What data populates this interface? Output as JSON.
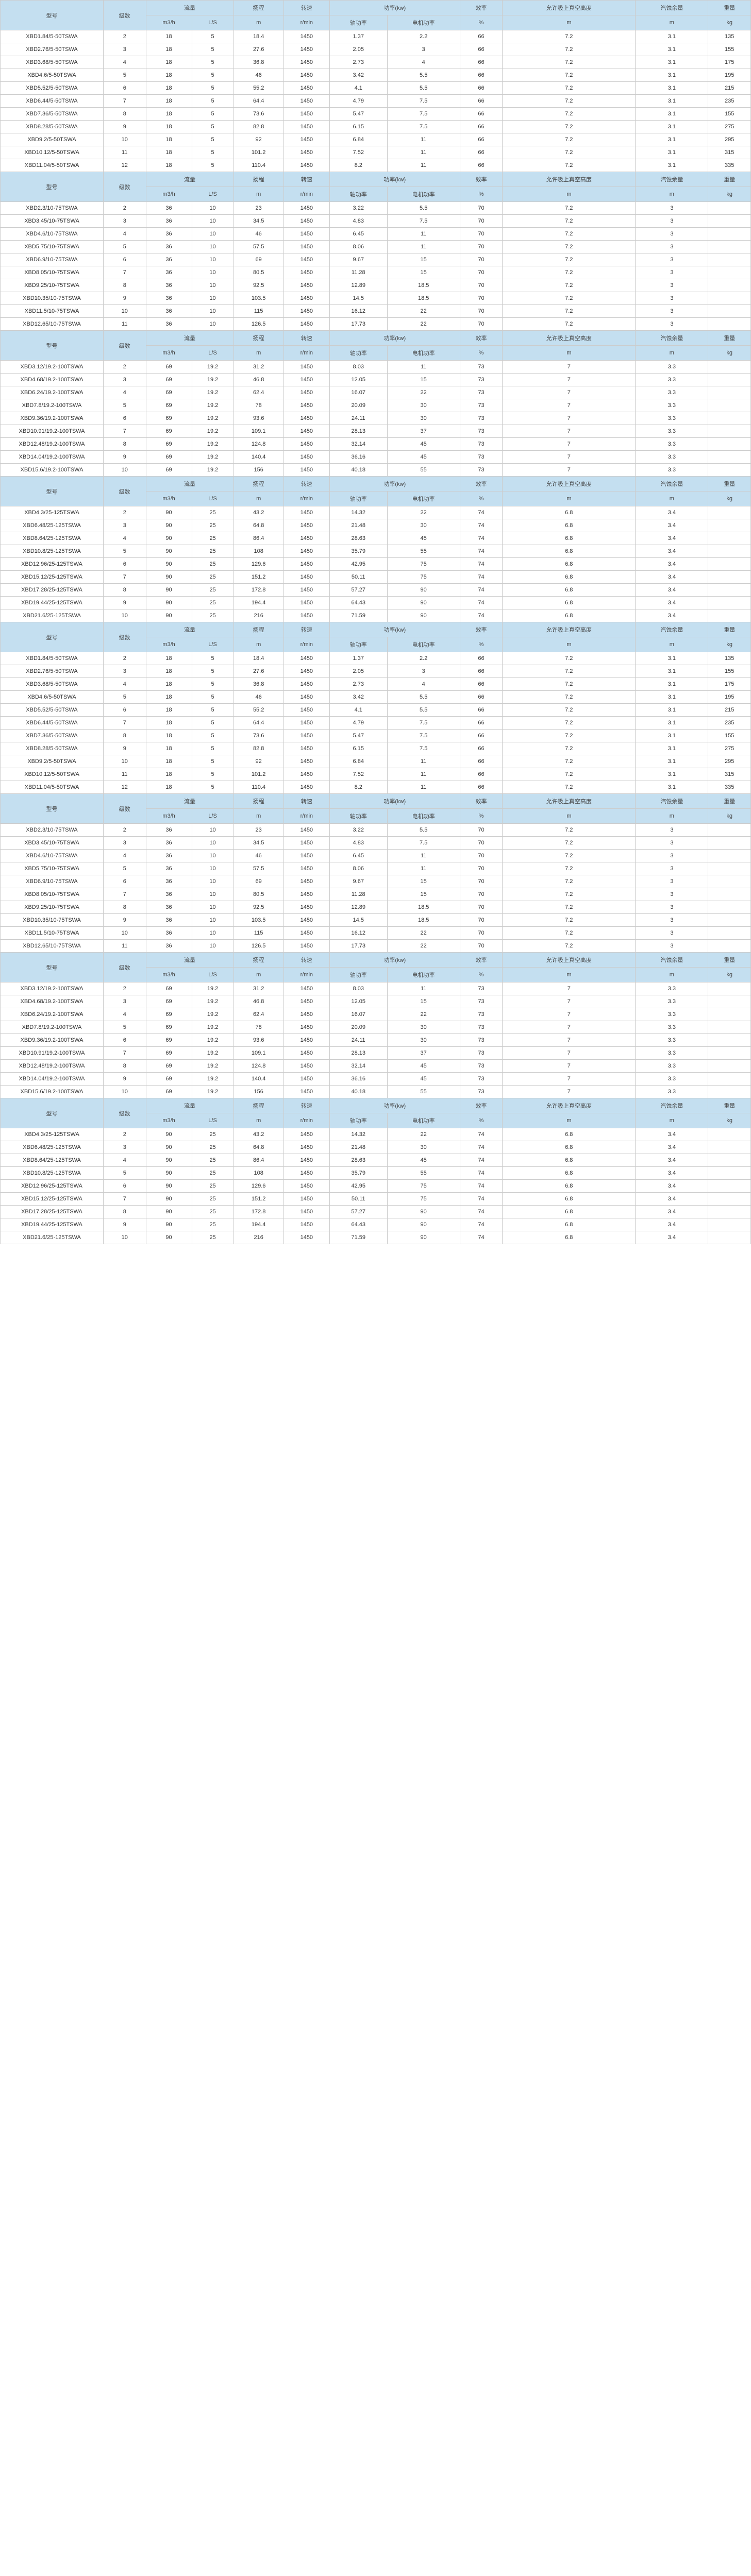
{
  "headers": {
    "model": "型号",
    "stages": "级数",
    "flow": "流量",
    "head": "扬程",
    "speed": "转速",
    "power": "功率(kw)",
    "eff": "效率",
    "npsh": "允许吸上真空高度",
    "cav": "汽蚀余量",
    "weight": "重量",
    "m3h": "m3/h",
    "ls": "L/S",
    "m": "m",
    "rmin": "r/min",
    "shaft": "轴功率",
    "motor": "电机功率",
    "pct": "%",
    "kg": "kg"
  },
  "groups": [
    {
      "rows": [
        [
          "XBD1.84/5-50TSWA",
          "2",
          "18",
          "5",
          "18.4",
          "1450",
          "1.37",
          "2.2",
          "66",
          "7.2",
          "3.1",
          "135"
        ],
        [
          "XBD2.76/5-50TSWA",
          "3",
          "18",
          "5",
          "27.6",
          "1450",
          "2.05",
          "3",
          "66",
          "7.2",
          "3.1",
          "155"
        ],
        [
          "XBD3.68/5-50TSWA",
          "4",
          "18",
          "5",
          "36.8",
          "1450",
          "2.73",
          "4",
          "66",
          "7.2",
          "3.1",
          "175"
        ],
        [
          "XBD4.6/5-50TSWA",
          "5",
          "18",
          "5",
          "46",
          "1450",
          "3.42",
          "5.5",
          "66",
          "7.2",
          "3.1",
          "195"
        ],
        [
          "XBD5.52/5-50TSWA",
          "6",
          "18",
          "5",
          "55.2",
          "1450",
          "4.1",
          "5.5",
          "66",
          "7.2",
          "3.1",
          "215"
        ],
        [
          "XBD6.44/5-50TSWA",
          "7",
          "18",
          "5",
          "64.4",
          "1450",
          "4.79",
          "7.5",
          "66",
          "7.2",
          "3.1",
          "235"
        ],
        [
          "XBD7.36/5-50TSWA",
          "8",
          "18",
          "5",
          "73.6",
          "1450",
          "5.47",
          "7.5",
          "66",
          "7.2",
          "3.1",
          "155"
        ],
        [
          "XBD8.28/5-50TSWA",
          "9",
          "18",
          "5",
          "82.8",
          "1450",
          "6.15",
          "7.5",
          "66",
          "7.2",
          "3.1",
          "275"
        ],
        [
          "XBD9.2/5-50TSWA",
          "10",
          "18",
          "5",
          "92",
          "1450",
          "6.84",
          "11",
          "66",
          "7.2",
          "3.1",
          "295"
        ],
        [
          "XBD10.12/5-50TSWA",
          "11",
          "18",
          "5",
          "101.2",
          "1450",
          "7.52",
          "11",
          "66",
          "7.2",
          "3.1",
          "315"
        ],
        [
          "XBD11.04/5-50TSWA",
          "12",
          "18",
          "5",
          "110.4",
          "1450",
          "8.2",
          "11",
          "66",
          "7.2",
          "3.1",
          "335"
        ]
      ]
    },
    {
      "rows": [
        [
          "XBD2.3/10-75TSWA",
          "2",
          "36",
          "10",
          "23",
          "1450",
          "3.22",
          "5.5",
          "70",
          "7.2",
          "3",
          ""
        ],
        [
          "XBD3.45/10-75TSWA",
          "3",
          "36",
          "10",
          "34.5",
          "1450",
          "4.83",
          "7.5",
          "70",
          "7.2",
          "3",
          ""
        ],
        [
          "XBD4.6/10-75TSWA",
          "4",
          "36",
          "10",
          "46",
          "1450",
          "6.45",
          "11",
          "70",
          "7.2",
          "3",
          ""
        ],
        [
          "XBD5.75/10-75TSWA",
          "5",
          "36",
          "10",
          "57.5",
          "1450",
          "8.06",
          "11",
          "70",
          "7.2",
          "3",
          ""
        ],
        [
          "XBD6.9/10-75TSWA",
          "6",
          "36",
          "10",
          "69",
          "1450",
          "9.67",
          "15",
          "70",
          "7.2",
          "3",
          ""
        ],
        [
          "XBD8.05/10-75TSWA",
          "7",
          "36",
          "10",
          "80.5",
          "1450",
          "11.28",
          "15",
          "70",
          "7.2",
          "3",
          ""
        ],
        [
          "XBD9.25/10-75TSWA",
          "8",
          "36",
          "10",
          "92.5",
          "1450",
          "12.89",
          "18.5",
          "70",
          "7.2",
          "3",
          ""
        ],
        [
          "XBD10.35/10-75TSWA",
          "9",
          "36",
          "10",
          "103.5",
          "1450",
          "14.5",
          "18.5",
          "70",
          "7.2",
          "3",
          ""
        ],
        [
          "XBD11.5/10-75TSWA",
          "10",
          "36",
          "10",
          "115",
          "1450",
          "16.12",
          "22",
          "70",
          "7.2",
          "3",
          ""
        ],
        [
          "XBD12.65/10-75TSWA",
          "11",
          "36",
          "10",
          "126.5",
          "1450",
          "17.73",
          "22",
          "70",
          "7.2",
          "3",
          ""
        ]
      ]
    },
    {
      "rows": [
        [
          "XBD3.12/19.2-100TSWA",
          "2",
          "69",
          "19.2",
          "31.2",
          "1450",
          "8.03",
          "11",
          "73",
          "7",
          "3.3",
          ""
        ],
        [
          "XBD4.68/19.2-100TSWA",
          "3",
          "69",
          "19.2",
          "46.8",
          "1450",
          "12.05",
          "15",
          "73",
          "7",
          "3.3",
          ""
        ],
        [
          "XBD6.24/19.2-100TSWA",
          "4",
          "69",
          "19.2",
          "62.4",
          "1450",
          "16.07",
          "22",
          "73",
          "7",
          "3.3",
          ""
        ],
        [
          "XBD7.8/19.2-100TSWA",
          "5",
          "69",
          "19.2",
          "78",
          "1450",
          "20.09",
          "30",
          "73",
          "7",
          "3.3",
          ""
        ],
        [
          "XBD9.36/19.2-100TSWA",
          "6",
          "69",
          "19.2",
          "93.6",
          "1450",
          "24.11",
          "30",
          "73",
          "7",
          "3.3",
          ""
        ],
        [
          "XBD10.91/19.2-100TSWA",
          "7",
          "69",
          "19.2",
          "109.1",
          "1450",
          "28.13",
          "37",
          "73",
          "7",
          "3.3",
          ""
        ],
        [
          "XBD12.48/19.2-100TSWA",
          "8",
          "69",
          "19.2",
          "124.8",
          "1450",
          "32.14",
          "45",
          "73",
          "7",
          "3.3",
          ""
        ],
        [
          "XBD14.04/19.2-100TSWA",
          "9",
          "69",
          "19.2",
          "140.4",
          "1450",
          "36.16",
          "45",
          "73",
          "7",
          "3.3",
          ""
        ],
        [
          "XBD15.6/19.2-100TSWA",
          "10",
          "69",
          "19.2",
          "156",
          "1450",
          "40.18",
          "55",
          "73",
          "7",
          "3.3",
          ""
        ]
      ]
    },
    {
      "rows": [
        [
          "XBD4.3/25-125TSWA",
          "2",
          "90",
          "25",
          "43.2",
          "1450",
          "14.32",
          "22",
          "74",
          "6.8",
          "3.4",
          ""
        ],
        [
          "XBD6.48/25-125TSWA",
          "3",
          "90",
          "25",
          "64.8",
          "1450",
          "21.48",
          "30",
          "74",
          "6.8",
          "3.4",
          ""
        ],
        [
          "XBD8.64/25-125TSWA",
          "4",
          "90",
          "25",
          "86.4",
          "1450",
          "28.63",
          "45",
          "74",
          "6.8",
          "3.4",
          ""
        ],
        [
          "XBD10.8/25-125TSWA",
          "5",
          "90",
          "25",
          "108",
          "1450",
          "35.79",
          "55",
          "74",
          "6.8",
          "3.4",
          ""
        ],
        [
          "XBD12.96/25-125TSWA",
          "6",
          "90",
          "25",
          "129.6",
          "1450",
          "42.95",
          "75",
          "74",
          "6.8",
          "3.4",
          ""
        ],
        [
          "XBD15.12/25-125TSWA",
          "7",
          "90",
          "25",
          "151.2",
          "1450",
          "50.11",
          "75",
          "74",
          "6.8",
          "3.4",
          ""
        ],
        [
          "XBD17.28/25-125TSWA",
          "8",
          "90",
          "25",
          "172.8",
          "1450",
          "57.27",
          "90",
          "74",
          "6.8",
          "3.4",
          ""
        ],
        [
          "XBD19.44/25-125TSWA",
          "9",
          "90",
          "25",
          "194.4",
          "1450",
          "64.43",
          "90",
          "74",
          "6.8",
          "3.4",
          ""
        ],
        [
          "XBD21.6/25-125TSWA",
          "10",
          "90",
          "25",
          "216",
          "1450",
          "71.59",
          "90",
          "74",
          "6.8",
          "3.4",
          ""
        ]
      ]
    },
    {
      "rows": [
        [
          "XBD1.84/5-50TSWA",
          "2",
          "18",
          "5",
          "18.4",
          "1450",
          "1.37",
          "2.2",
          "66",
          "7.2",
          "3.1",
          "135"
        ],
        [
          "XBD2.76/5-50TSWA",
          "3",
          "18",
          "5",
          "27.6",
          "1450",
          "2.05",
          "3",
          "66",
          "7.2",
          "3.1",
          "155"
        ],
        [
          "XBD3.68/5-50TSWA",
          "4",
          "18",
          "5",
          "36.8",
          "1450",
          "2.73",
          "4",
          "66",
          "7.2",
          "3.1",
          "175"
        ],
        [
          "XBD4.6/5-50TSWA",
          "5",
          "18",
          "5",
          "46",
          "1450",
          "3.42",
          "5.5",
          "66",
          "7.2",
          "3.1",
          "195"
        ],
        [
          "XBD5.52/5-50TSWA",
          "6",
          "18",
          "5",
          "55.2",
          "1450",
          "4.1",
          "5.5",
          "66",
          "7.2",
          "3.1",
          "215"
        ],
        [
          "XBD6.44/5-50TSWA",
          "7",
          "18",
          "5",
          "64.4",
          "1450",
          "4.79",
          "7.5",
          "66",
          "7.2",
          "3.1",
          "235"
        ],
        [
          "XBD7.36/5-50TSWA",
          "8",
          "18",
          "5",
          "73.6",
          "1450",
          "5.47",
          "7.5",
          "66",
          "7.2",
          "3.1",
          "155"
        ],
        [
          "XBD8.28/5-50TSWA",
          "9",
          "18",
          "5",
          "82.8",
          "1450",
          "6.15",
          "7.5",
          "66",
          "7.2",
          "3.1",
          "275"
        ],
        [
          "XBD9.2/5-50TSWA",
          "10",
          "18",
          "5",
          "92",
          "1450",
          "6.84",
          "11",
          "66",
          "7.2",
          "3.1",
          "295"
        ],
        [
          "XBD10.12/5-50TSWA",
          "11",
          "18",
          "5",
          "101.2",
          "1450",
          "7.52",
          "11",
          "66",
          "7.2",
          "3.1",
          "315"
        ],
        [
          "XBD11.04/5-50TSWA",
          "12",
          "18",
          "5",
          "110.4",
          "1450",
          "8.2",
          "11",
          "66",
          "7.2",
          "3.1",
          "335"
        ]
      ]
    },
    {
      "rows": [
        [
          "XBD2.3/10-75TSWA",
          "2",
          "36",
          "10",
          "23",
          "1450",
          "3.22",
          "5.5",
          "70",
          "7.2",
          "3",
          ""
        ],
        [
          "XBD3.45/10-75TSWA",
          "3",
          "36",
          "10",
          "34.5",
          "1450",
          "4.83",
          "7.5",
          "70",
          "7.2",
          "3",
          ""
        ],
        [
          "XBD4.6/10-75TSWA",
          "4",
          "36",
          "10",
          "46",
          "1450",
          "6.45",
          "11",
          "70",
          "7.2",
          "3",
          ""
        ],
        [
          "XBD5.75/10-75TSWA",
          "5",
          "36",
          "10",
          "57.5",
          "1450",
          "8.06",
          "11",
          "70",
          "7.2",
          "3",
          ""
        ],
        [
          "XBD6.9/10-75TSWA",
          "6",
          "36",
          "10",
          "69",
          "1450",
          "9.67",
          "15",
          "70",
          "7.2",
          "3",
          ""
        ],
        [
          "XBD8.05/10-75TSWA",
          "7",
          "36",
          "10",
          "80.5",
          "1450",
          "11.28",
          "15",
          "70",
          "7.2",
          "3",
          ""
        ],
        [
          "XBD9.25/10-75TSWA",
          "8",
          "36",
          "10",
          "92.5",
          "1450",
          "12.89",
          "18.5",
          "70",
          "7.2",
          "3",
          ""
        ],
        [
          "XBD10.35/10-75TSWA",
          "9",
          "36",
          "10",
          "103.5",
          "1450",
          "14.5",
          "18.5",
          "70",
          "7.2",
          "3",
          ""
        ],
        [
          "XBD11.5/10-75TSWA",
          "10",
          "36",
          "10",
          "115",
          "1450",
          "16.12",
          "22",
          "70",
          "7.2",
          "3",
          ""
        ],
        [
          "XBD12.65/10-75TSWA",
          "11",
          "36",
          "10",
          "126.5",
          "1450",
          "17.73",
          "22",
          "70",
          "7.2",
          "3",
          ""
        ]
      ]
    },
    {
      "rows": [
        [
          "XBD3.12/19.2-100TSWA",
          "2",
          "69",
          "19.2",
          "31.2",
          "1450",
          "8.03",
          "11",
          "73",
          "7",
          "3.3",
          ""
        ],
        [
          "XBD4.68/19.2-100TSWA",
          "3",
          "69",
          "19.2",
          "46.8",
          "1450",
          "12.05",
          "15",
          "73",
          "7",
          "3.3",
          ""
        ],
        [
          "XBD6.24/19.2-100TSWA",
          "4",
          "69",
          "19.2",
          "62.4",
          "1450",
          "16.07",
          "22",
          "73",
          "7",
          "3.3",
          ""
        ],
        [
          "XBD7.8/19.2-100TSWA",
          "5",
          "69",
          "19.2",
          "78",
          "1450",
          "20.09",
          "30",
          "73",
          "7",
          "3.3",
          ""
        ],
        [
          "XBD9.36/19.2-100TSWA",
          "6",
          "69",
          "19.2",
          "93.6",
          "1450",
          "24.11",
          "30",
          "73",
          "7",
          "3.3",
          ""
        ],
        [
          "XBD10.91/19.2-100TSWA",
          "7",
          "69",
          "19.2",
          "109.1",
          "1450",
          "28.13",
          "37",
          "73",
          "7",
          "3.3",
          ""
        ],
        [
          "XBD12.48/19.2-100TSWA",
          "8",
          "69",
          "19.2",
          "124.8",
          "1450",
          "32.14",
          "45",
          "73",
          "7",
          "3.3",
          ""
        ],
        [
          "XBD14.04/19.2-100TSWA",
          "9",
          "69",
          "19.2",
          "140.4",
          "1450",
          "36.16",
          "45",
          "73",
          "7",
          "3.3",
          ""
        ],
        [
          "XBD15.6/19.2-100TSWA",
          "10",
          "69",
          "19.2",
          "156",
          "1450",
          "40.18",
          "55",
          "73",
          "7",
          "3.3",
          ""
        ]
      ]
    },
    {
      "rows": [
        [
          "XBD4.3/25-125TSWA",
          "2",
          "90",
          "25",
          "43.2",
          "1450",
          "14.32",
          "22",
          "74",
          "6.8",
          "3.4",
          ""
        ],
        [
          "XBD6.48/25-125TSWA",
          "3",
          "90",
          "25",
          "64.8",
          "1450",
          "21.48",
          "30",
          "74",
          "6.8",
          "3.4",
          ""
        ],
        [
          "XBD8.64/25-125TSWA",
          "4",
          "90",
          "25",
          "86.4",
          "1450",
          "28.63",
          "45",
          "74",
          "6.8",
          "3.4",
          ""
        ],
        [
          "XBD10.8/25-125TSWA",
          "5",
          "90",
          "25",
          "108",
          "1450",
          "35.79",
          "55",
          "74",
          "6.8",
          "3.4",
          ""
        ],
        [
          "XBD12.96/25-125TSWA",
          "6",
          "90",
          "25",
          "129.6",
          "1450",
          "42.95",
          "75",
          "74",
          "6.8",
          "3.4",
          ""
        ],
        [
          "XBD15.12/25-125TSWA",
          "7",
          "90",
          "25",
          "151.2",
          "1450",
          "50.11",
          "75",
          "74",
          "6.8",
          "3.4",
          ""
        ],
        [
          "XBD17.28/25-125TSWA",
          "8",
          "90",
          "25",
          "172.8",
          "1450",
          "57.27",
          "90",
          "74",
          "6.8",
          "3.4",
          ""
        ],
        [
          "XBD19.44/25-125TSWA",
          "9",
          "90",
          "25",
          "194.4",
          "1450",
          "64.43",
          "90",
          "74",
          "6.8",
          "3.4",
          ""
        ],
        [
          "XBD21.6/25-125TSWA",
          "10",
          "90",
          "25",
          "216",
          "1450",
          "71.59",
          "90",
          "74",
          "6.8",
          "3.4",
          ""
        ]
      ]
    }
  ]
}
